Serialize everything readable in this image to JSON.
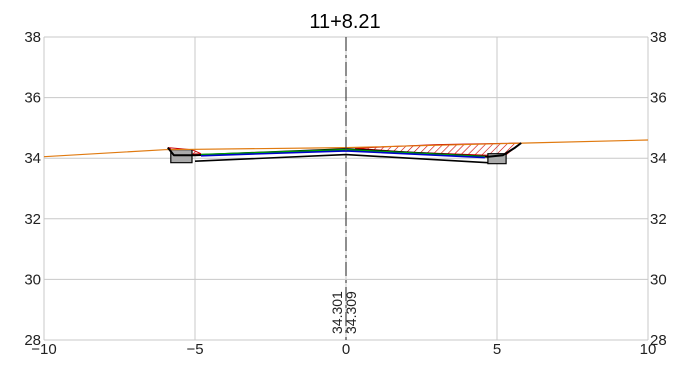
{
  "title": "11+8.21",
  "chart_data": {
    "type": "line",
    "title": "11+8.21",
    "xlabel": "",
    "ylabel": "",
    "xlim": [
      -10,
      10
    ],
    "ylim": [
      28,
      38
    ],
    "x_ticks": [
      -10,
      -5,
      0,
      5,
      10
    ],
    "y_ticks": [
      28,
      30,
      32,
      34,
      36,
      38
    ],
    "x_tick_labels": [
      "−10",
      "−5",
      "0",
      "5",
      "10"
    ],
    "y_tick_labels_left": [
      "28",
      "30",
      "32",
      "34",
      "36",
      "38"
    ],
    "y_tick_labels_right": [
      "28",
      "30",
      "32",
      "34",
      "36",
      "38"
    ],
    "grid": true,
    "centerline_x": 0,
    "centerline_elevations": [
      "34.301",
      "34.309"
    ],
    "series": [
      {
        "kind": "existing-ground",
        "color": "#e07a10",
        "points": [
          [
            -10,
            34.05
          ],
          [
            -6,
            34.28
          ],
          [
            0,
            34.35
          ],
          [
            6,
            34.5
          ],
          [
            10,
            34.6
          ]
        ]
      },
      {
        "kind": "design-surface",
        "color": "#000000",
        "points": [
          [
            -5.9,
            34.35
          ],
          [
            -5.7,
            34.1
          ],
          [
            -5,
            34.1
          ],
          [
            0,
            34.3
          ],
          [
            4.7,
            34.05
          ],
          [
            5.2,
            34.1
          ],
          [
            5.6,
            34.35
          ],
          [
            5.8,
            34.5
          ]
        ]
      },
      {
        "kind": "layer-green",
        "color": "#00a000",
        "points": [
          [
            -4.8,
            34.12
          ],
          [
            0,
            34.28
          ],
          [
            4.6,
            34.05
          ]
        ]
      },
      {
        "kind": "layer-blue",
        "color": "#0000cc",
        "points": [
          [
            -4.8,
            34.08
          ],
          [
            0,
            34.24
          ],
          [
            4.6,
            34.02
          ]
        ]
      },
      {
        "kind": "subgrade",
        "color": "#000000",
        "points": [
          [
            -5,
            33.9
          ],
          [
            0,
            34.12
          ],
          [
            4.7,
            33.85
          ]
        ]
      }
    ],
    "cut_fill_regions": [
      {
        "side": "left",
        "color": "#cc0000",
        "points": [
          [
            -5.9,
            34.35
          ],
          [
            -5.1,
            34.28
          ],
          [
            -4.8,
            34.15
          ],
          [
            -5.5,
            34.12
          ]
        ]
      },
      {
        "side": "right",
        "color": "#cc0000",
        "points": [
          [
            0.3,
            34.33
          ],
          [
            3,
            34.45
          ],
          [
            5.8,
            34.5
          ],
          [
            5.3,
            34.12
          ],
          [
            4.7,
            34.1
          ],
          [
            2,
            34.2
          ]
        ]
      }
    ],
    "curb_blocks": [
      {
        "side": "left",
        "color": "#aaaaaa",
        "points": [
          [
            -5.8,
            34.28
          ],
          [
            -5.1,
            34.28
          ],
          [
            -5.1,
            33.85
          ],
          [
            -5.8,
            33.85
          ]
        ]
      },
      {
        "side": "right",
        "color": "#aaaaaa",
        "points": [
          [
            4.7,
            34.15
          ],
          [
            5.3,
            34.15
          ],
          [
            5.3,
            33.82
          ],
          [
            4.7,
            33.82
          ]
        ]
      }
    ]
  }
}
